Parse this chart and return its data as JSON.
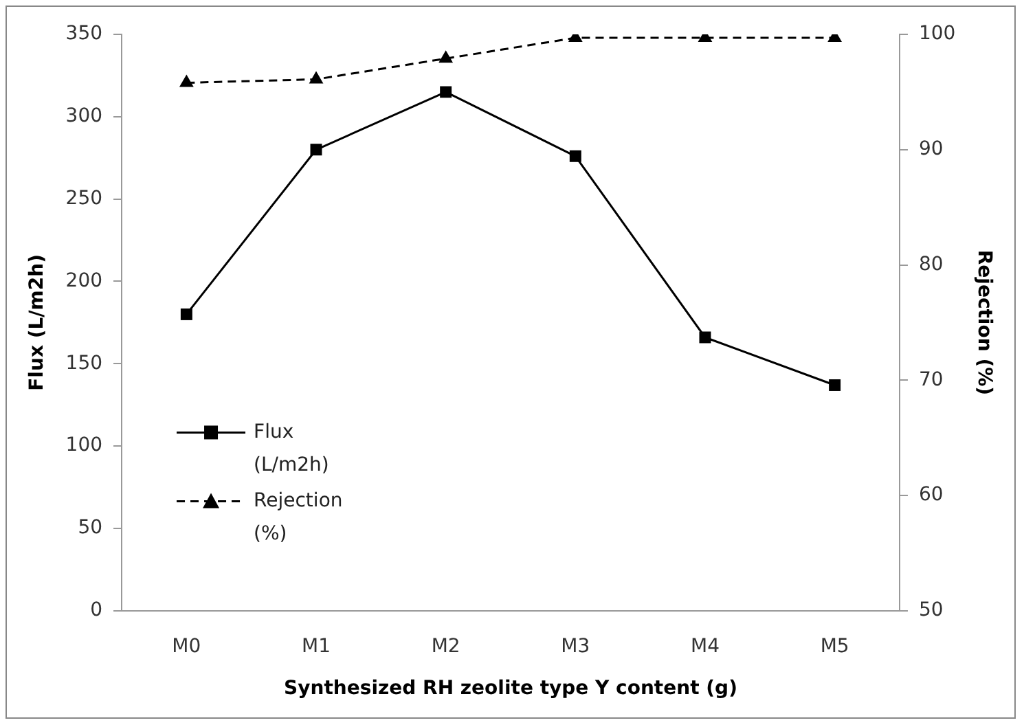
{
  "chart_data": {
    "type": "line",
    "xlabel": "Synthesized RH zeolite type Y content (g)",
    "ylabel": "Flux (L/m2h)",
    "y2label": "Rejection (%)",
    "categories": [
      "M0",
      "M1",
      "M2",
      "M3",
      "M4",
      "M5"
    ],
    "series": [
      {
        "name": "Flux (L/m2h)",
        "color": "#000000",
        "values": [
          180,
          280,
          315,
          276,
          166,
          137
        ],
        "marker": "square",
        "line_style": "solid"
      },
      {
        "name": "Rejection (%)",
        "color": "#000000",
        "values": [
          95.8,
          96.1,
          97.9,
          99.7,
          99.7,
          99.7
        ],
        "marker": "triangle",
        "line_style": "dashed",
        "axis": "y2"
      }
    ],
    "ylim": [
      0,
      350
    ],
    "yticks": [
      0,
      50,
      100,
      150,
      200,
      250,
      300,
      350
    ],
    "y2lim": [
      50,
      100
    ],
    "y2ticks": [
      50,
      60,
      70,
      80,
      90,
      100
    ],
    "grid": false,
    "legend": "left"
  }
}
